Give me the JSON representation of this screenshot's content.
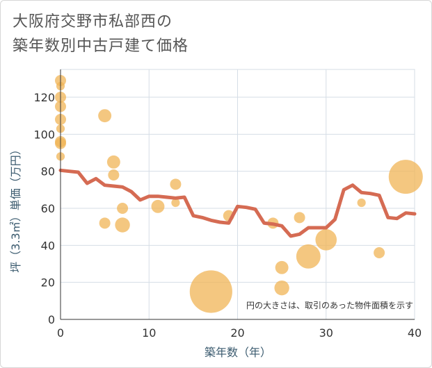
{
  "title": {
    "line1": "大阪府交野市私部西の",
    "line2": "築年数別中古戸建て価格"
  },
  "chart_data": {
    "type": "scatter",
    "title": "大阪府交野市私部西の築年数別中古戸建て価格",
    "xlabel": "築年数（年）",
    "ylabel": "坪（3.3㎡）単価（万円）",
    "xlim": [
      0,
      40
    ],
    "ylim": [
      0,
      135
    ],
    "xticks": [
      0,
      10,
      20,
      30,
      40
    ],
    "yticks": [
      0,
      20,
      40,
      60,
      80,
      100,
      120
    ],
    "grid": true,
    "note": "円の大きさは、取引のあった物件面積を示す",
    "colors": {
      "bubble": "#f0b455",
      "line": "#d56b53",
      "grid": "#d5dde6",
      "axis_title": "#3a5a6e"
    },
    "bubbles": [
      {
        "x": 0,
        "y": 129,
        "size": 2
      },
      {
        "x": 0,
        "y": 126,
        "size": 1
      },
      {
        "x": 0,
        "y": 120,
        "size": 2
      },
      {
        "x": 0,
        "y": 115,
        "size": 2
      },
      {
        "x": 0,
        "y": 108,
        "size": 2
      },
      {
        "x": 0,
        "y": 103,
        "size": 1
      },
      {
        "x": 0,
        "y": 96,
        "size": 2
      },
      {
        "x": 0,
        "y": 95,
        "size": 2
      },
      {
        "x": 0,
        "y": 88,
        "size": 1
      },
      {
        "x": 5,
        "y": 110,
        "size": 3
      },
      {
        "x": 5,
        "y": 52,
        "size": 2
      },
      {
        "x": 6,
        "y": 85,
        "size": 3
      },
      {
        "x": 6,
        "y": 78,
        "size": 2
      },
      {
        "x": 7,
        "y": 60,
        "size": 2
      },
      {
        "x": 7,
        "y": 51,
        "size": 4
      },
      {
        "x": 11,
        "y": 61,
        "size": 3
      },
      {
        "x": 13,
        "y": 73,
        "size": 2
      },
      {
        "x": 13,
        "y": 63,
        "size": 1
      },
      {
        "x": 17,
        "y": 15,
        "size": 40
      },
      {
        "x": 19,
        "y": 56,
        "size": 2
      },
      {
        "x": 24,
        "y": 52,
        "size": 2
      },
      {
        "x": 25,
        "y": 28,
        "size": 3
      },
      {
        "x": 25,
        "y": 17,
        "size": 4
      },
      {
        "x": 27,
        "y": 55,
        "size": 2
      },
      {
        "x": 28,
        "y": 34,
        "size": 12
      },
      {
        "x": 30,
        "y": 43,
        "size": 9
      },
      {
        "x": 34,
        "y": 63,
        "size": 1
      },
      {
        "x": 36,
        "y": 36,
        "size": 2
      },
      {
        "x": 39,
        "y": 77,
        "size": 25
      }
    ],
    "trend": {
      "x": [
        0,
        1,
        2,
        3,
        4,
        5,
        6,
        7,
        8,
        9,
        10,
        11,
        12,
        13,
        14,
        15,
        16,
        17,
        18,
        19,
        20,
        21,
        22,
        23,
        24,
        25,
        26,
        27,
        28,
        29,
        30,
        31,
        32,
        33,
        34,
        35,
        36,
        37,
        38,
        39,
        40
      ],
      "y": [
        80.5,
        80,
        79.5,
        73.5,
        76,
        72.5,
        72,
        71.5,
        69,
        64.5,
        66.5,
        66.5,
        66,
        65.5,
        66,
        56,
        55,
        53.5,
        52.5,
        52,
        61,
        60.5,
        59.5,
        52,
        51.5,
        50.5,
        45,
        46,
        49.5,
        49.5,
        49.5,
        54,
        70,
        72.5,
        68.5,
        68,
        67,
        55,
        54.5,
        57.5,
        57
      ]
    }
  }
}
